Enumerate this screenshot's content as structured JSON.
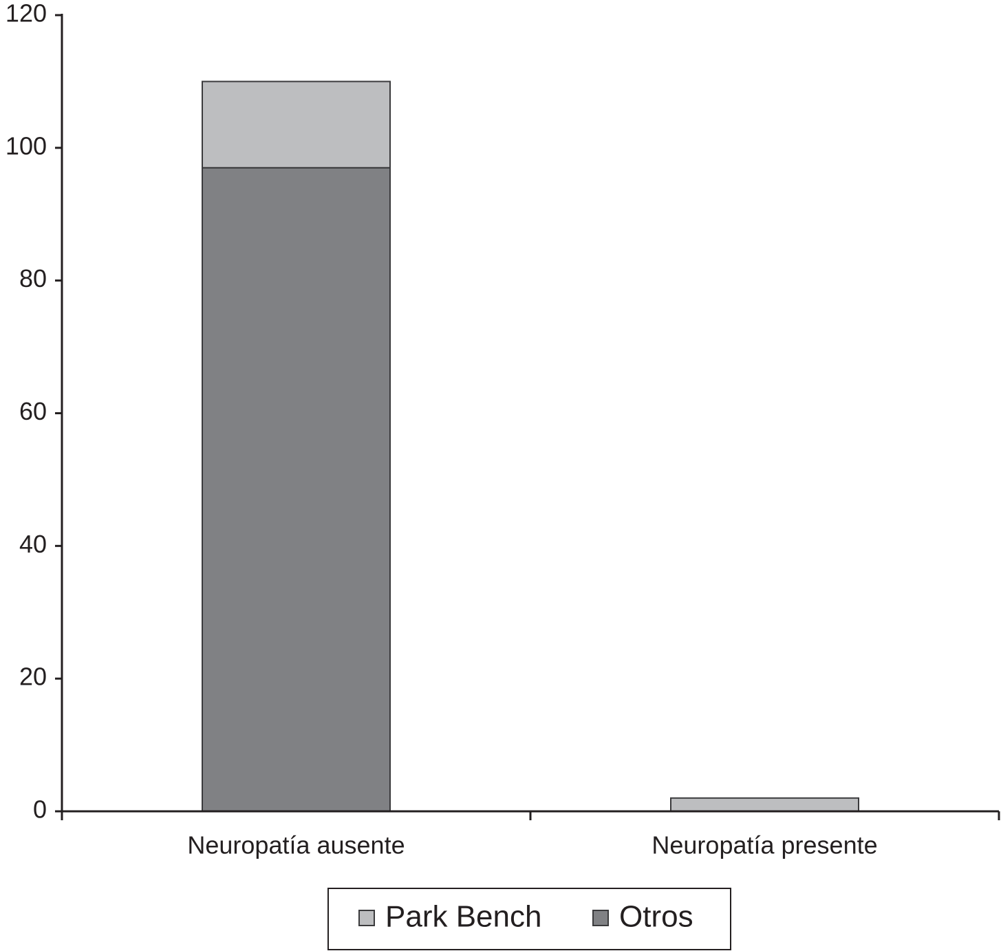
{
  "chart_data": {
    "type": "stacked_bar",
    "categories": [
      "Neuropatía ausente",
      "Neuropatía presente"
    ],
    "series": [
      {
        "name": "Park Bench",
        "color": "#bdbec0",
        "values": [
          13,
          2
        ]
      },
      {
        "name": "Otros",
        "color": "#808184",
        "values": [
          97,
          0
        ]
      }
    ],
    "ylim": [
      0,
      120
    ],
    "yticks": [
      0,
      20,
      40,
      60,
      80,
      100,
      120
    ]
  }
}
